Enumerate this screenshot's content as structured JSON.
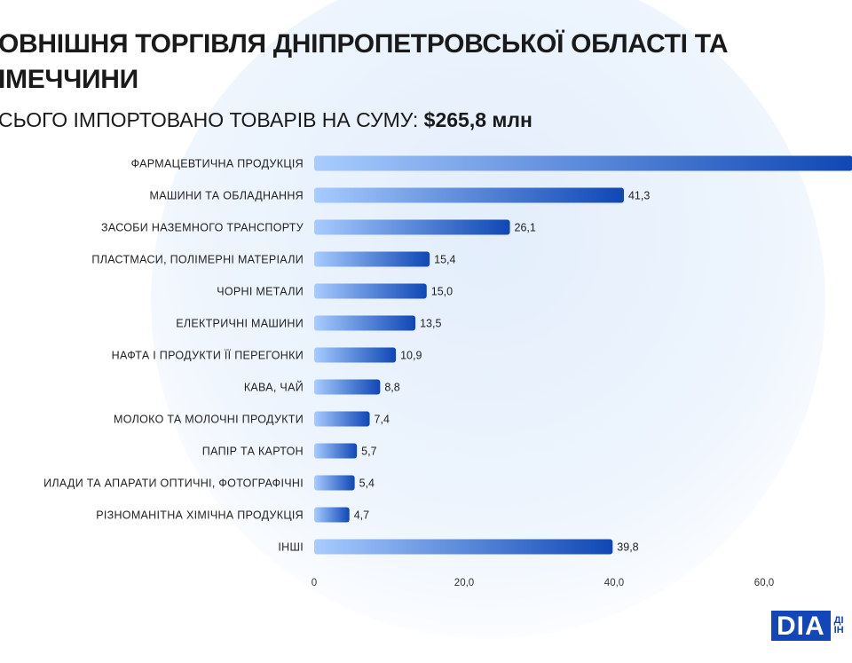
{
  "header": {
    "title_line1": "ОВНІШНЯ ТОРГІВЛЯ ДНІПРОПЕТРОВСЬКОЇ ОБЛАСТІ ТА",
    "title_line2": "ІМЕЧЧИНИ",
    "subtitle_prefix": "СЬОГО ІМПОРТОВАНО ТОВАРІВ НА СУМУ: ",
    "subtitle_amount": "$265,8 млн"
  },
  "logo": {
    "mark": "DIA",
    "text_line1": "ДІ",
    "text_line2": "ІН"
  },
  "chart_data": {
    "type": "bar",
    "orientation": "horizontal",
    "categories": [
      "ФАРМАЦЕВТИЧНА ПРОДУКЦІЯ",
      "МАШИНИ ТА ОБЛАДНАННЯ",
      "ЗАСОБИ НАЗЕМНОГО ТРАНСПОРТУ",
      "ПЛАСТМАСИ, ПОЛІМЕРНІ МАТЕРІАЛИ",
      "ЧОРНІ МЕТАЛИ",
      "ЕЛЕКТРИЧНІ МАШИНИ",
      "НАФТА І ПРОДУКТИ ЇЇ ПЕРЕГОНКИ",
      "КАВА, ЧАЙ",
      "МОЛОКО ТА МОЛОЧНІ ПРОДУКТИ",
      "ПАПІР ТА КАРТОН",
      "ИЛАДИ ТА АПАРАТИ ОПТИЧНІ, ФОТОГРАФІЧНІ",
      "РІЗНОМАНІТНА ХІМІЧНА ПРОДУКЦІЯ",
      "ІНШІ"
    ],
    "values": [
      71.8,
      41.3,
      26.1,
      15.4,
      15.0,
      13.5,
      10.9,
      8.8,
      7.4,
      5.7,
      5.4,
      4.7,
      39.8
    ],
    "value_labels": [
      "",
      "41,3",
      "26,1",
      "15,4",
      "15,0",
      "13,5",
      "10,9",
      "8,8",
      "7,4",
      "5,7",
      "5,4",
      "4,7",
      "39,8"
    ],
    "xticks": [
      0,
      20,
      40,
      60
    ],
    "xtick_labels": [
      "0",
      "20,0",
      "40,0",
      "60,0"
    ],
    "xlim": [
      0,
      71.8
    ],
    "grid": false,
    "colors": {
      "bar_start": "#a8ccff",
      "bar_end": "#0f47b5"
    }
  }
}
